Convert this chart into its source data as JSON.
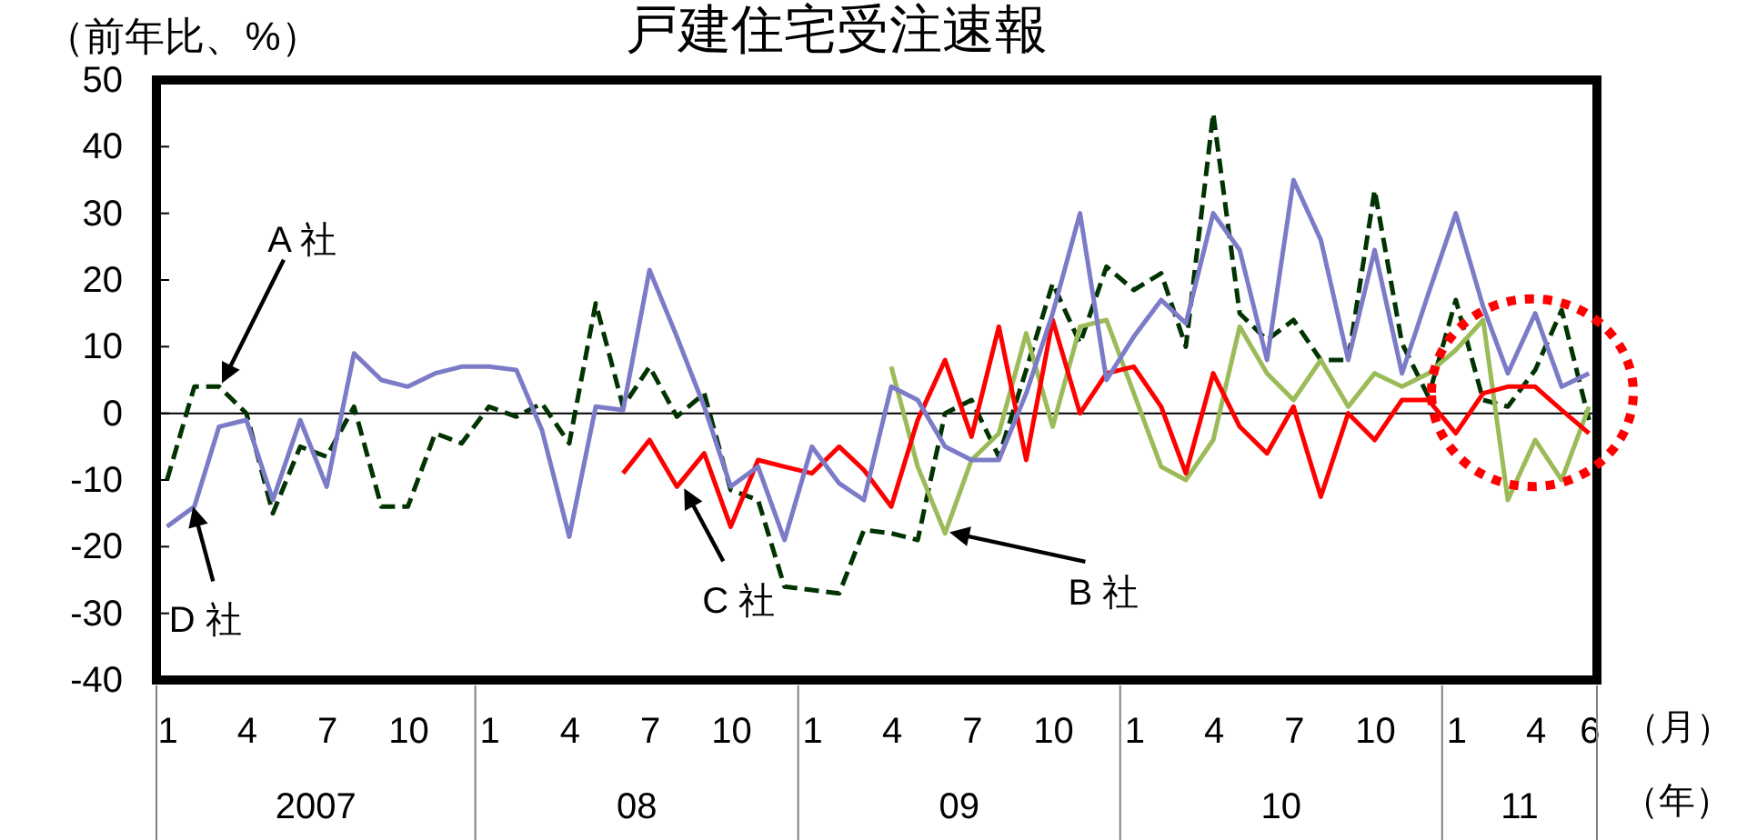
{
  "chart_data": {
    "type": "line",
    "title": "戸建住宅受注速報",
    "ylabel": "（前年比、%）",
    "xlabel": "（月）",
    "x": [
      "2007-01",
      "2007-02",
      "2007-03",
      "2007-04",
      "2007-05",
      "2007-06",
      "2007-07",
      "2007-08",
      "2007-09",
      "2007-10",
      "2007-11",
      "2007-12",
      "2008-01",
      "2008-02",
      "2008-03",
      "2008-04",
      "2008-05",
      "2008-06",
      "2008-07",
      "2008-08",
      "2008-09",
      "2008-10",
      "2008-11",
      "2008-12",
      "2009-01",
      "2009-02",
      "2009-03",
      "2009-04",
      "2009-05",
      "2009-06",
      "2009-07",
      "2009-08",
      "2009-09",
      "2009-10",
      "2009-11",
      "2009-12",
      "2010-01",
      "2010-02",
      "2010-03",
      "2010-04",
      "2010-05",
      "2010-06",
      "2010-07",
      "2010-08",
      "2010-09",
      "2010-10",
      "2010-11",
      "2010-12",
      "2011-01",
      "2011-02",
      "2011-03",
      "2011-04",
      "2011-05",
      "2011-06"
    ],
    "xlim": [
      "2006-12-20",
      "2011-06-10"
    ],
    "xticks": [
      {
        "value": "2007-01",
        "label": "1"
      },
      {
        "value": "2007-04",
        "label": "4"
      },
      {
        "value": "2007-07",
        "label": "7"
      },
      {
        "value": "2007-10",
        "label": "10"
      },
      {
        "value": "2008-01",
        "label": "1"
      },
      {
        "value": "2008-04",
        "label": "4"
      },
      {
        "value": "2008-07",
        "label": "7"
      },
      {
        "value": "2008-10",
        "label": "10"
      },
      {
        "value": "2009-01",
        "label": "1"
      },
      {
        "value": "2009-04",
        "label": "4"
      },
      {
        "value": "2009-07",
        "label": "7"
      },
      {
        "value": "2009-10",
        "label": "10"
      },
      {
        "value": "2010-01",
        "label": "1"
      },
      {
        "value": "2010-04",
        "label": "4"
      },
      {
        "value": "2010-07",
        "label": "7"
      },
      {
        "value": "2010-10",
        "label": "10"
      },
      {
        "value": "2011-01",
        "label": "1"
      },
      {
        "value": "2011-04",
        "label": "4"
      },
      {
        "value": "2011-06",
        "label": "6"
      }
    ],
    "ylim": [
      -40,
      50
    ],
    "yticks": [
      -40,
      -30,
      -20,
      -10,
      0,
      10,
      20,
      30,
      40,
      50
    ],
    "series": [
      {
        "color": "#003300",
        "line_style": "dashed",
        "values": [
          -10,
          4,
          4,
          0,
          -15,
          -5,
          -6.5,
          1,
          -14,
          -14,
          -3,
          -4.5,
          1,
          -0.5,
          1.5,
          -4.5,
          16.5,
          1,
          7,
          -0.5,
          3,
          -11.5,
          -13,
          -26,
          -26.5,
          -27,
          -17.5,
          -18,
          -19,
          0,
          2,
          -6.5,
          6.5,
          19.5,
          10.5,
          22,
          18.5,
          21,
          10,
          45,
          15,
          11,
          14,
          8,
          8,
          33.5,
          10.5,
          2.5,
          17,
          2,
          1,
          6.5,
          15.5,
          -1
        ]
      },
      {
        "color": "#9bbb59",
        "line_style": "solid",
        "values": [
          null,
          null,
          null,
          null,
          null,
          null,
          null,
          null,
          null,
          null,
          null,
          null,
          null,
          null,
          null,
          null,
          null,
          null,
          null,
          null,
          null,
          null,
          null,
          null,
          null,
          null,
          null,
          7,
          -8,
          -18,
          -7,
          -3,
          12,
          -2,
          13,
          14,
          3,
          -8,
          -10,
          -4,
          13,
          6,
          2,
          8,
          1,
          6,
          4,
          6,
          9.5,
          14,
          -13,
          -4,
          -10,
          1
        ]
      },
      {
        "color": "#ff0000",
        "line_style": "solid",
        "values": [
          null,
          null,
          null,
          null,
          null,
          null,
          null,
          null,
          null,
          null,
          null,
          null,
          null,
          null,
          null,
          null,
          null,
          -9,
          -4,
          -11,
          -6,
          -17,
          -7,
          -8,
          -9,
          -5,
          -8.5,
          -14,
          -1,
          8,
          -3.5,
          13,
          -7,
          14,
          0,
          6,
          7,
          1,
          -9,
          6,
          -2,
          -6,
          1,
          -12.5,
          0,
          -4,
          2,
          2,
          -3,
          3,
          4,
          4,
          0.5,
          -3
        ]
      },
      {
        "color": "#7b7bc8",
        "line_style": "solid",
        "values": [
          -17,
          -14,
          -2,
          -1,
          -13,
          -1,
          -11,
          9,
          5,
          4,
          6,
          7,
          7,
          6.5,
          -2.5,
          -18.5,
          1,
          0.5,
          21.5,
          11.5,
          1,
          -11,
          -8,
          -19,
          -5,
          -10.5,
          -13,
          4,
          2,
          -5,
          -7,
          -7,
          3,
          15,
          30,
          5,
          11.5,
          17,
          13.5,
          30,
          24.5,
          8,
          35,
          26,
          8,
          24.5,
          6,
          18,
          30,
          16,
          6,
          15,
          4,
          6
        ]
      }
    ],
    "ref_lines": [
      {
        "axis": "y",
        "value": 0,
        "color": "#000000"
      }
    ],
    "annotations": [
      "A 社",
      {
        "text": "D 社",
        "x": "2007-02",
        "y": -14
      },
      {
        "text": "C 社",
        "x": "2008-08",
        "y": -11
      },
      "B 社",
      "2007",
      "08",
      "09",
      "10",
      "11",
      "（年）"
    ]
  }
}
